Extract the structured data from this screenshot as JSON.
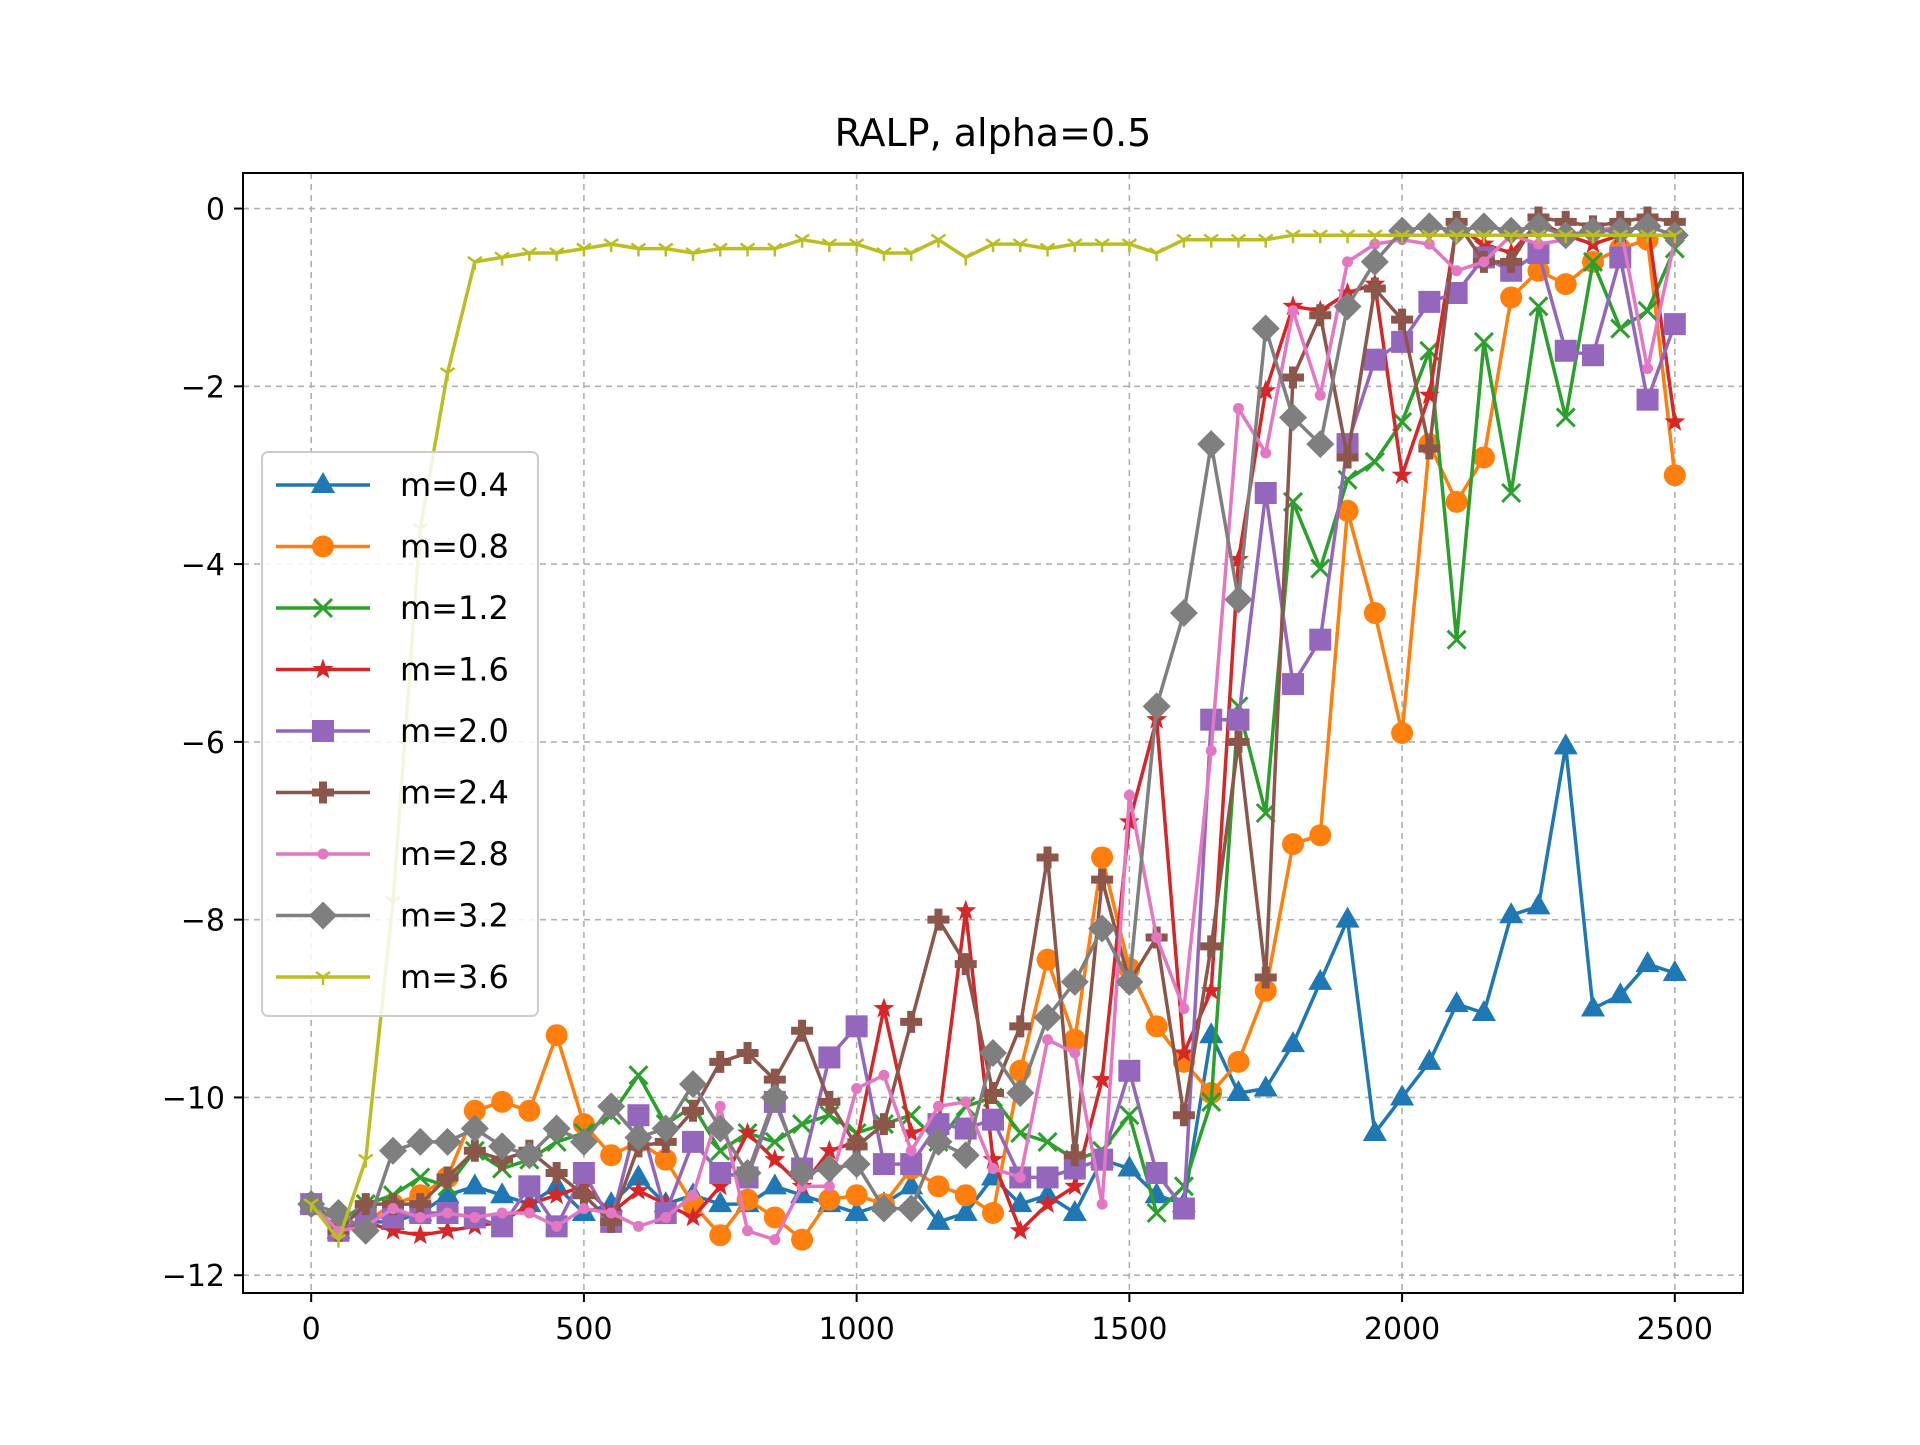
{
  "chart_data": {
    "type": "line",
    "title": "RALP, alpha=0.5",
    "xlabel": "",
    "ylabel": "",
    "xlim": [
      -125,
      2625
    ],
    "ylim": [
      -12.2,
      0.4
    ],
    "xticks": [
      0,
      500,
      1000,
      1500,
      2000,
      2500
    ],
    "xtick_labels": [
      "0",
      "500",
      "1000",
      "1500",
      "2000",
      "2500"
    ],
    "yticks": [
      0,
      -2,
      -4,
      -6,
      -8,
      -10,
      -12
    ],
    "ytick_labels": [
      "0",
      "−2",
      "−4",
      "−6",
      "−8",
      "−10",
      "−12"
    ],
    "grid": true,
    "legend_position": "center-left",
    "x": [
      0,
      50,
      100,
      150,
      200,
      250,
      300,
      350,
      400,
      450,
      500,
      550,
      600,
      650,
      700,
      750,
      800,
      850,
      900,
      950,
      1000,
      1050,
      1100,
      1150,
      1200,
      1250,
      1300,
      1350,
      1400,
      1450,
      1500,
      1550,
      1600,
      1650,
      1700,
      1750,
      1800,
      1850,
      1900,
      1950,
      2000,
      2050,
      2100,
      2150,
      2200,
      2250,
      2300,
      2350,
      2400,
      2450,
      2500
    ],
    "series": [
      {
        "name": "m=0.4",
        "color": "#1f77b4",
        "marker": "triangle",
        "values": [
          -11.2,
          -11.5,
          -11.4,
          -11.4,
          -11.3,
          -11.1,
          -11.0,
          -11.1,
          -11.2,
          -11.0,
          -11.3,
          -11.2,
          -10.9,
          -11.2,
          -11.1,
          -11.2,
          -11.2,
          -11.0,
          -11.1,
          -11.2,
          -11.3,
          -11.2,
          -11.0,
          -11.4,
          -11.3,
          -10.9,
          -11.2,
          -11.1,
          -11.3,
          -10.7,
          -10.8,
          -11.1,
          -11.2,
          -9.3,
          -9.95,
          -9.9,
          -9.4,
          -8.7,
          -8.0,
          -10.4,
          -10.0,
          -9.6,
          -8.95,
          -9.05,
          -7.95,
          -7.85,
          -6.05,
          -9.0,
          -8.85,
          -8.5,
          -8.6
        ]
      },
      {
        "name": "m=0.8",
        "color": "#ff7f0e",
        "marker": "circle",
        "values": [
          -11.2,
          -11.5,
          -11.4,
          -11.2,
          -11.1,
          -10.9,
          -10.15,
          -10.05,
          -10.15,
          -9.3,
          -10.3,
          -10.65,
          -10.5,
          -10.7,
          -11.2,
          -11.55,
          -11.15,
          -11.35,
          -11.6,
          -11.15,
          -11.1,
          -11.2,
          -10.8,
          -11.0,
          -11.1,
          -11.3,
          -9.7,
          -8.45,
          -9.35,
          -7.3,
          -8.55,
          -9.2,
          -9.6,
          -9.95,
          -9.6,
          -8.8,
          -7.15,
          -7.05,
          -3.4,
          -4.55,
          -5.9,
          -2.65,
          -3.3,
          -2.8,
          -1.0,
          -0.7,
          -0.85,
          -0.6,
          -0.45,
          -0.35,
          -3.0
        ]
      },
      {
        "name": "m=1.2",
        "color": "#2ca02c",
        "marker": "x",
        "values": [
          -11.2,
          -11.4,
          -11.2,
          -11.1,
          -10.9,
          -11.0,
          -10.6,
          -10.8,
          -10.7,
          -10.5,
          -10.4,
          -10.2,
          -9.75,
          -10.3,
          -10.1,
          -10.6,
          -10.4,
          -10.5,
          -10.3,
          -10.2,
          -10.4,
          -10.3,
          -10.2,
          -10.5,
          -10.1,
          -10.0,
          -10.4,
          -10.5,
          -10.7,
          -10.6,
          -10.2,
          -11.3,
          -11.0,
          -10.05,
          -5.6,
          -6.8,
          -3.3,
          -4.05,
          -3.05,
          -2.85,
          -2.4,
          -1.6,
          -4.85,
          -1.5,
          -3.2,
          -1.1,
          -2.35,
          -0.6,
          -1.35,
          -1.15,
          -0.45
        ]
      },
      {
        "name": "m=1.6",
        "color": "#d62728",
        "marker": "star",
        "values": [
          -11.2,
          -11.5,
          -11.4,
          -11.5,
          -11.55,
          -11.5,
          -11.45,
          -11.4,
          -11.2,
          -11.1,
          -11.0,
          -11.3,
          -11.05,
          -11.2,
          -11.35,
          -11.0,
          -10.4,
          -10.7,
          -11.0,
          -10.6,
          -10.5,
          -9.0,
          -10.4,
          -10.3,
          -7.9,
          -10.7,
          -11.5,
          -11.2,
          -11.0,
          -9.8,
          -6.9,
          -5.75,
          -9.5,
          -8.8,
          -3.95,
          -2.05,
          -1.1,
          -1.15,
          -0.95,
          -0.85,
          -3.0,
          -2.1,
          -0.2,
          -0.4,
          -0.5,
          -0.15,
          -0.3,
          -0.4,
          -0.3,
          -0.15,
          -2.4
        ]
      },
      {
        "name": "m=2.0",
        "color": "#9467bd",
        "marker": "square",
        "values": [
          -11.2,
          -11.5,
          -11.35,
          -11.35,
          -11.3,
          -11.3,
          -11.35,
          -11.45,
          -11.0,
          -11.45,
          -10.85,
          -11.4,
          -10.2,
          -11.3,
          -10.5,
          -10.85,
          -10.9,
          -10.05,
          -10.8,
          -9.55,
          -9.2,
          -10.75,
          -10.75,
          -10.3,
          -10.35,
          -10.25,
          -10.9,
          -10.9,
          -10.8,
          -10.7,
          -9.7,
          -10.85,
          -11.25,
          -5.75,
          -5.75,
          -3.2,
          -5.35,
          -4.85,
          -2.65,
          -1.7,
          -1.5,
          -1.05,
          -0.95,
          -0.55,
          -0.7,
          -0.5,
          -1.6,
          -1.65,
          -0.55,
          -2.15,
          -1.3
        ]
      },
      {
        "name": "m=2.4",
        "color": "#8c564b",
        "marker": "plus",
        "values": [
          -11.2,
          -11.5,
          -11.2,
          -11.2,
          -11.2,
          -10.9,
          -10.6,
          -10.7,
          -10.6,
          -10.85,
          -11.1,
          -11.4,
          -10.55,
          -10.5,
          -10.15,
          -9.6,
          -9.5,
          -9.8,
          -9.25,
          -10.05,
          -10.55,
          -10.3,
          -9.15,
          -8.0,
          -8.5,
          -9.95,
          -9.2,
          -7.3,
          -10.65,
          -7.55,
          -8.7,
          -8.2,
          -10.2,
          -8.3,
          -6.0,
          -8.65,
          -1.9,
          -1.2,
          -2.8,
          -0.9,
          -1.25,
          -2.7,
          -0.15,
          -0.6,
          -0.6,
          -0.1,
          -0.15,
          -0.2,
          -0.15,
          -0.1,
          -0.15
        ]
      },
      {
        "name": "m=2.8",
        "color": "#e377c2",
        "marker": "point",
        "values": [
          -11.2,
          -11.5,
          -11.45,
          -11.25,
          -11.35,
          -11.3,
          -11.35,
          -11.3,
          -11.3,
          -11.45,
          -11.25,
          -11.3,
          -11.45,
          -11.35,
          -11.1,
          -10.1,
          -11.5,
          -11.6,
          -11.0,
          -11.0,
          -9.9,
          -9.75,
          -10.6,
          -10.1,
          -10.05,
          -10.8,
          -10.9,
          -9.35,
          -9.5,
          -11.2,
          -6.6,
          -8.2,
          -9.0,
          -6.1,
          -2.25,
          -2.75,
          -1.15,
          -2.1,
          -0.6,
          -0.4,
          -0.35,
          -0.4,
          -0.7,
          -0.6,
          -0.3,
          -0.4,
          -0.35,
          -0.25,
          -0.2,
          -1.8,
          -0.35
        ]
      },
      {
        "name": "m=3.2",
        "color": "#7f7f7f",
        "marker": "diamond",
        "values": [
          -11.2,
          -11.3,
          -11.5,
          -10.6,
          -10.5,
          -10.5,
          -10.35,
          -10.55,
          -10.65,
          -10.35,
          -10.5,
          -10.1,
          -10.45,
          -10.35,
          -9.85,
          -10.35,
          -10.85,
          -10.0,
          -10.85,
          -10.8,
          -10.75,
          -11.25,
          -11.25,
          -10.5,
          -10.65,
          -9.5,
          -9.95,
          -9.1,
          -8.7,
          -8.1,
          -8.7,
          -5.6,
          -4.55,
          -2.65,
          -4.4,
          -1.35,
          -2.35,
          -2.65,
          -1.1,
          -0.6,
          -0.25,
          -0.2,
          -0.25,
          -0.2,
          -0.25,
          -0.2,
          -0.3,
          -0.25,
          -0.25,
          -0.2,
          -0.3
        ]
      },
      {
        "name": "m=3.6",
        "color": "#bcbd22",
        "marker": "tri",
        "values": [
          -11.2,
          -11.6,
          -10.7,
          -7.8,
          -3.6,
          -1.85,
          -0.6,
          -0.55,
          -0.5,
          -0.5,
          -0.45,
          -0.4,
          -0.45,
          -0.45,
          -0.5,
          -0.45,
          -0.45,
          -0.45,
          -0.35,
          -0.4,
          -0.4,
          -0.5,
          -0.5,
          -0.35,
          -0.55,
          -0.4,
          -0.4,
          -0.45,
          -0.4,
          -0.4,
          -0.4,
          -0.5,
          -0.35,
          -0.35,
          -0.35,
          -0.35,
          -0.3,
          -0.3,
          -0.3,
          -0.3,
          -0.3,
          -0.3,
          -0.3,
          -0.3,
          -0.3,
          -0.3,
          -0.3,
          -0.3,
          -0.3,
          -0.3,
          -0.3
        ]
      }
    ]
  }
}
